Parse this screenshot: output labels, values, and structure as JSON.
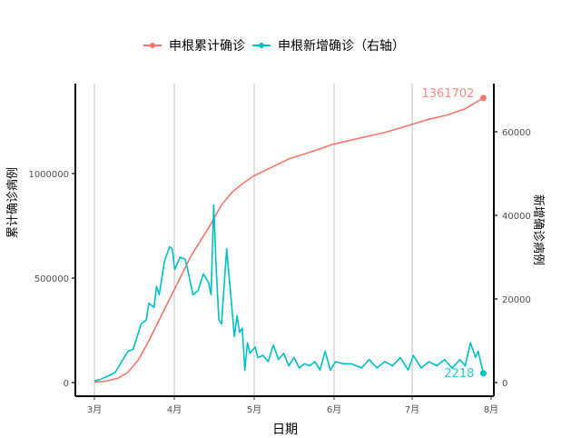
{
  "chart_data": {
    "type": "line",
    "title": "",
    "xlabel": "日期",
    "ylabel": "累计确诊病例",
    "ylabel_right": "新增确诊病例",
    "x_ticks": [
      "3月",
      "4月",
      "5月",
      "6月",
      "7月",
      "8月"
    ],
    "y_ticks_left": [
      0,
      500000,
      1000000
    ],
    "y_ticks_right": [
      0,
      20000,
      40000,
      60000
    ],
    "ylim_left": [
      -65000,
      1430000
    ],
    "ylim_right": [
      -3200,
      71000
    ],
    "grid": {
      "vertical_major": true,
      "horizontal": false
    },
    "legend_position": "top",
    "colors": {
      "cumulative": "#F8766D",
      "daily": "#00BFC4"
    },
    "series": [
      {
        "name": "申根累计确诊",
        "axis": "left",
        "end_label": "1361702",
        "points_by_date": [
          [
            "03-01",
            2000
          ],
          [
            "03-05",
            6000
          ],
          [
            "03-10",
            20000
          ],
          [
            "03-14",
            50000
          ],
          [
            "03-18",
            110000
          ],
          [
            "03-22",
            200000
          ],
          [
            "03-26",
            300000
          ],
          [
            "03-30",
            400000
          ],
          [
            "04-03",
            500000
          ],
          [
            "04-07",
            600000
          ],
          [
            "04-11",
            680000
          ],
          [
            "04-15",
            760000
          ],
          [
            "04-19",
            850000
          ],
          [
            "04-23",
            910000
          ],
          [
            "04-27",
            950000
          ],
          [
            "05-01",
            985000
          ],
          [
            "05-05",
            1010000
          ],
          [
            "05-10",
            1040000
          ],
          [
            "05-15",
            1070000
          ],
          [
            "05-20",
            1090000
          ],
          [
            "05-25",
            1110000
          ],
          [
            "06-01",
            1140000
          ],
          [
            "06-08",
            1160000
          ],
          [
            "06-15",
            1180000
          ],
          [
            "06-22",
            1200000
          ],
          [
            "06-30",
            1230000
          ],
          [
            "07-08",
            1260000
          ],
          [
            "07-15",
            1280000
          ],
          [
            "07-22",
            1310000
          ],
          [
            "07-29",
            1361702
          ]
        ]
      },
      {
        "name": "申根新增确诊（右轴）",
        "axis": "right",
        "end_label": "2218",
        "points_by_date": [
          [
            "03-01",
            400
          ],
          [
            "03-03",
            700
          ],
          [
            "03-06",
            1500
          ],
          [
            "03-09",
            2400
          ],
          [
            "03-12",
            5500
          ],
          [
            "03-14",
            7500
          ],
          [
            "03-16",
            8000
          ],
          [
            "03-19",
            14000
          ],
          [
            "03-21",
            15000
          ],
          [
            "03-22",
            19000
          ],
          [
            "03-24",
            18000
          ],
          [
            "03-25",
            23000
          ],
          [
            "03-26",
            21000
          ],
          [
            "03-28",
            29000
          ],
          [
            "03-30",
            32500
          ],
          [
            "03-31",
            32000
          ],
          [
            "04-01",
            27000
          ],
          [
            "04-03",
            30000
          ],
          [
            "04-05",
            29500
          ],
          [
            "04-06",
            27000
          ],
          [
            "04-08",
            21000
          ],
          [
            "04-10",
            22000
          ],
          [
            "04-12",
            26000
          ],
          [
            "04-14",
            24000
          ],
          [
            "04-15",
            21000
          ],
          [
            "04-16",
            42500
          ],
          [
            "04-17",
            27000
          ],
          [
            "04-18",
            15000
          ],
          [
            "04-19",
            14000
          ],
          [
            "04-21",
            32000
          ],
          [
            "04-22",
            25000
          ],
          [
            "04-23",
            18000
          ],
          [
            "04-24",
            11000
          ],
          [
            "04-25",
            16000
          ],
          [
            "04-26",
            12000
          ],
          [
            "04-27",
            13000
          ],
          [
            "04-28",
            3000
          ],
          [
            "04-29",
            9500
          ],
          [
            "04-30",
            7000
          ],
          [
            "05-02",
            8500
          ],
          [
            "05-03",
            6000
          ],
          [
            "05-05",
            6500
          ],
          [
            "05-07",
            5000
          ],
          [
            "05-09",
            9000
          ],
          [
            "05-11",
            5500
          ],
          [
            "05-13",
            7000
          ],
          [
            "05-15",
            4000
          ],
          [
            "05-17",
            6000
          ],
          [
            "05-19",
            3500
          ],
          [
            "05-21",
            4500
          ],
          [
            "05-23",
            4000
          ],
          [
            "05-25",
            5000
          ],
          [
            "05-27",
            3000
          ],
          [
            "05-29",
            7500
          ],
          [
            "05-31",
            3000
          ],
          [
            "06-02",
            5000
          ],
          [
            "06-05",
            4500
          ],
          [
            "06-08",
            4500
          ],
          [
            "06-12",
            3500
          ],
          [
            "06-15",
            5500
          ],
          [
            "06-18",
            3500
          ],
          [
            "06-21",
            5000
          ],
          [
            "06-24",
            4000
          ],
          [
            "06-27",
            6000
          ],
          [
            "06-30",
            3000
          ],
          [
            "07-02",
            6500
          ],
          [
            "07-05",
            3500
          ],
          [
            "07-08",
            5000
          ],
          [
            "07-11",
            4000
          ],
          [
            "07-14",
            5500
          ],
          [
            "07-17",
            3500
          ],
          [
            "07-20",
            5500
          ],
          [
            "07-22",
            4000
          ],
          [
            "07-24",
            9500
          ],
          [
            "07-26",
            6000
          ],
          [
            "07-27",
            7500
          ],
          [
            "07-29",
            2218
          ]
        ]
      }
    ]
  },
  "legend": {
    "items": [
      {
        "label": "申根累计确诊",
        "color": "#F8766D"
      },
      {
        "label": "申根新增确诊（右轴）",
        "color": "#00BFC4"
      }
    ]
  },
  "axes": {
    "x_title": "日期",
    "y_left_title": "累计确诊病例",
    "y_right_title": "新增确诊病例"
  }
}
